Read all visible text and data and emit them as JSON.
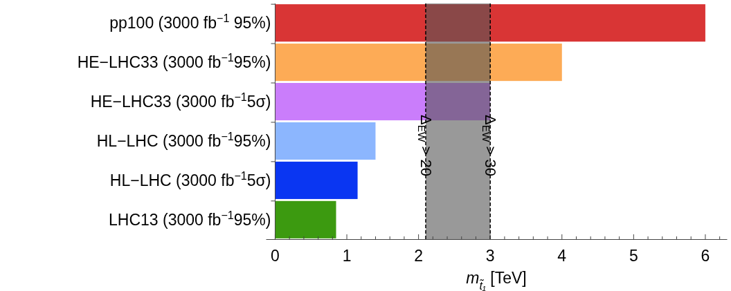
{
  "chart_data": {
    "type": "bar",
    "orientation": "horizontal",
    "xlabel": "m$_{t̃₁}$ [TeV]",
    "categories": [
      "pp100 (3000 fb$^{−1}$ 95%)",
      "HE−LHC33 (3000 fb$^{−1}$95%)",
      "HE−LHC33 (3000 fb$^{−1}$5σ)",
      "HL−LHC (3000 fb$^{−1}$95%)",
      "HL−LHC (3000 fb$^{−1}$5σ)",
      "LHC13 (3000 fb$^{−1}$95%)"
    ],
    "values": [
      6.0,
      4.0,
      3.0,
      1.4,
      1.15,
      0.85
    ],
    "colors": [
      "#d93535",
      "#fdab56",
      "#ca7dfb",
      "#8cb6fe",
      "#0a36f2",
      "#3c9a10"
    ],
    "xlim": [
      -0.13,
      6.3
    ],
    "xticks": [
      0,
      {
        "value": 0.2,
        "label": null
      },
      {
        "value": 0.4,
        "label": null
      },
      {
        "value": 0.6,
        "label": null
      },
      {
        "value": 0.8,
        "label": null
      },
      1,
      {
        "value": 1.2,
        "label": null
      },
      {
        "value": 1.4,
        "label": null
      },
      {
        "value": 1.6,
        "label": null
      },
      {
        "value": 1.8,
        "label": null
      },
      2,
      {
        "value": 2.2,
        "label": null
      },
      {
        "value": 2.4,
        "label": null
      },
      {
        "value": 2.6,
        "label": null
      },
      {
        "value": 2.8,
        "label": null
      },
      3,
      {
        "value": 3.2,
        "label": null
      },
      {
        "value": 3.4,
        "label": null
      },
      {
        "value": 3.6,
        "label": null
      },
      {
        "value": 3.8,
        "label": null
      },
      4,
      {
        "value": 4.2,
        "label": null
      },
      {
        "value": 4.4,
        "label": null
      },
      {
        "value": 4.6,
        "label": null
      },
      {
        "value": 4.8,
        "label": null
      },
      5,
      {
        "value": 5.2,
        "label": null
      },
      {
        "value": 5.4,
        "label": null
      },
      {
        "value": 5.6,
        "label": null
      },
      {
        "value": 5.8,
        "label": null
      },
      6,
      {
        "value": 6.2,
        "label": null
      }
    ],
    "bands": [
      {
        "axis": "x",
        "from": 2.1,
        "to": 3.0,
        "color": "#555555"
      }
    ],
    "ref_lines": [
      {
        "axis": "x",
        "value": 2.1,
        "label": "Δ$_{EW}$ > 20",
        "line_style": "dashed"
      },
      {
        "axis": "x",
        "value": 3.0,
        "label": "Δ$_{EW}$ > 30",
        "line_style": "dashed"
      }
    ]
  }
}
